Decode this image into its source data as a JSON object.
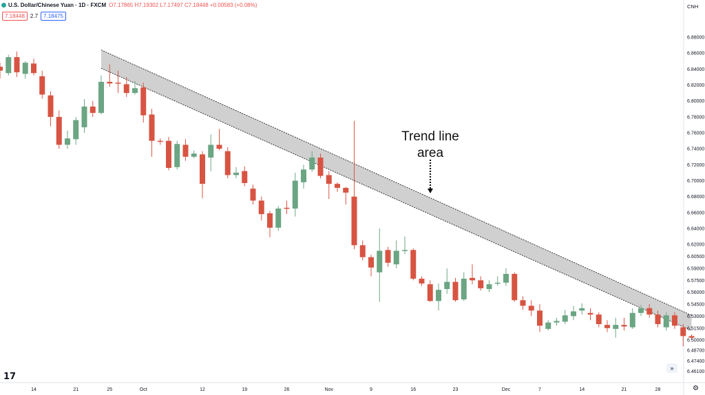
{
  "header": {
    "symbol": "U.S. Dollar/Chinese Yuan · 1D · FXCM",
    "ohlc": "O7.17865 H7.19302 L7.17497 C7.18448 +0.00583 (+0.08%)",
    "sell_price": "7.18448",
    "spread": "2.7",
    "buy_price": "7.18475",
    "currency": "CNH"
  },
  "icons": {
    "logo": "tradingview-logo-icon",
    "forward": "double-chevron-right-icon",
    "settings": "gear-icon"
  },
  "logo_text": "17",
  "forward_glyph": "»",
  "settings_glyph": "⚙",
  "colors": {
    "up": "#6ba583",
    "down": "#d75442",
    "band": "#c8c8c8",
    "axis_text": "#131722"
  },
  "chart_data": {
    "type": "candlestick",
    "ylim": [
      6.4535,
      6.8982
    ],
    "y_ticks": [
      "6.88000",
      "6.86000",
      "6.84000",
      "6.82000",
      "6.80000",
      "6.78000",
      "6.76000",
      "6.74000",
      "6.72000",
      "6.70000",
      "6.68000",
      "6.66000",
      "6.64000",
      "6.62000",
      "6.60500",
      "6.59000",
      "6.57500",
      "6.56000",
      "6.54500",
      "6.53000",
      "6.51500",
      "6.50000",
      "6.48700",
      "6.47400",
      "6.46100"
    ],
    "x_labels": [
      {
        "label": "14",
        "index": 4
      },
      {
        "label": "21",
        "index": 9
      },
      {
        "label": "25",
        "index": 13
      },
      {
        "label": "Oct",
        "index": 17
      },
      {
        "label": "12",
        "index": 24
      },
      {
        "label": "19",
        "index": 29
      },
      {
        "label": "26",
        "index": 34
      },
      {
        "label": "Nov",
        "index": 39
      },
      {
        "label": "9",
        "index": 44
      },
      {
        "label": "16",
        "index": 49
      },
      {
        "label": "23",
        "index": 54
      },
      {
        "label": "Dec",
        "index": 60
      },
      {
        "label": "7",
        "index": 64
      },
      {
        "label": "14",
        "index": 69
      },
      {
        "label": "21",
        "index": 74
      },
      {
        "label": "28",
        "index": 78
      }
    ],
    "candles": [
      [
        6.843,
        6.838,
        6.848,
        6.828
      ],
      [
        6.835,
        6.855,
        6.858,
        6.832
      ],
      [
        6.855,
        6.836,
        6.862,
        6.83
      ],
      [
        6.834,
        6.848,
        6.85,
        6.828
      ],
      [
        6.847,
        6.835,
        6.853,
        6.832
      ],
      [
        6.831,
        6.808,
        6.838,
        6.803
      ],
      [
        6.807,
        6.78,
        6.812,
        6.768
      ],
      [
        6.78,
        6.745,
        6.788,
        6.74
      ],
      [
        6.745,
        6.753,
        6.763,
        6.74
      ],
      [
        6.752,
        6.776,
        6.78,
        6.745
      ],
      [
        6.767,
        6.793,
        6.802,
        6.76
      ],
      [
        6.793,
        6.785,
        6.8,
        6.78
      ],
      [
        6.785,
        6.824,
        6.832,
        6.783
      ],
      [
        6.824,
        6.822,
        6.846,
        6.818
      ],
      [
        6.823,
        6.822,
        6.838,
        6.81
      ],
      [
        6.821,
        6.81,
        6.83,
        6.805
      ],
      [
        6.81,
        6.816,
        6.825,
        6.808
      ],
      [
        6.817,
        6.782,
        6.823,
        6.773
      ],
      [
        6.783,
        6.75,
        6.79,
        6.73
      ],
      [
        6.75,
        6.749,
        6.753,
        6.745
      ],
      [
        6.75,
        6.716,
        6.755,
        6.713
      ],
      [
        6.717,
        6.746,
        6.75,
        6.714
      ],
      [
        6.745,
        6.73,
        6.752,
        6.725
      ],
      [
        6.73,
        6.734,
        6.738,
        6.728
      ],
      [
        6.733,
        6.696,
        6.737,
        6.678
      ],
      [
        6.729,
        6.745,
        6.758,
        6.712
      ],
      [
        6.745,
        6.74,
        6.765,
        6.738
      ],
      [
        6.737,
        6.707,
        6.742,
        6.703
      ],
      [
        6.707,
        6.71,
        6.717,
        6.703
      ],
      [
        6.712,
        6.697,
        6.718,
        6.693
      ],
      [
        6.69,
        6.675,
        6.695,
        6.67
      ],
      [
        6.675,
        6.658,
        6.68,
        6.65
      ],
      [
        6.659,
        6.641,
        6.662,
        6.629
      ],
      [
        6.641,
        6.665,
        6.668,
        6.637
      ],
      [
        6.666,
        6.665,
        6.675,
        6.658
      ],
      [
        6.665,
        6.7,
        6.71,
        6.655
      ],
      [
        6.698,
        6.714,
        6.72,
        6.69
      ],
      [
        6.714,
        6.729,
        6.737,
        6.711
      ],
      [
        6.729,
        6.706,
        6.734,
        6.703
      ],
      [
        6.707,
        6.696,
        6.712,
        6.677
      ],
      [
        6.696,
        6.691,
        6.698,
        6.686
      ],
      [
        6.691,
        6.685,
        6.692,
        6.67
      ],
      [
        6.68,
        6.619,
        6.775,
        6.614
      ],
      [
        6.619,
        6.604,
        6.625,
        6.6
      ],
      [
        6.604,
        6.591,
        6.607,
        6.58
      ],
      [
        6.585,
        6.612,
        6.64,
        6.548
      ],
      [
        6.613,
        6.597,
        6.617,
        6.592
      ],
      [
        6.595,
        6.612,
        6.625,
        6.59
      ],
      [
        6.613,
        6.613,
        6.63,
        6.608
      ],
      [
        6.613,
        6.577,
        6.615,
        6.575
      ],
      [
        6.577,
        6.571,
        6.58,
        6.568
      ],
      [
        6.57,
        6.549,
        6.575,
        6.548
      ],
      [
        6.549,
        6.563,
        6.571,
        6.537
      ],
      [
        6.564,
        6.573,
        6.59,
        6.558
      ],
      [
        6.573,
        6.55,
        6.578,
        6.548
      ],
      [
        6.551,
        6.577,
        6.585,
        6.549
      ],
      [
        6.578,
        6.575,
        6.595,
        6.57
      ],
      [
        6.575,
        6.565,
        6.58,
        6.562
      ],
      [
        6.564,
        6.57,
        6.575,
        6.56
      ],
      [
        6.571,
        6.572,
        6.58,
        6.568
      ],
      [
        6.572,
        6.583,
        6.59,
        6.568
      ],
      [
        6.583,
        6.55,
        6.585,
        6.548
      ],
      [
        6.55,
        6.543,
        6.555,
        6.538
      ],
      [
        6.543,
        6.537,
        6.55,
        6.53
      ],
      [
        6.537,
        6.518,
        6.545,
        6.51
      ],
      [
        6.514,
        6.522,
        6.525,
        6.512
      ],
      [
        6.522,
        6.524,
        6.528,
        6.518
      ],
      [
        6.523,
        6.531,
        6.538,
        6.52
      ],
      [
        6.53,
        6.536,
        6.543,
        6.525
      ],
      [
        6.537,
        6.54,
        6.546,
        6.532
      ],
      [
        6.534,
        6.532,
        6.54,
        6.525
      ],
      [
        6.532,
        6.52,
        6.535,
        6.516
      ],
      [
        6.519,
        6.515,
        6.525,
        6.51
      ],
      [
        6.514,
        6.519,
        6.528,
        6.503
      ],
      [
        6.519,
        6.517,
        6.528,
        6.512
      ],
      [
        6.516,
        6.534,
        6.54,
        6.514
      ],
      [
        6.534,
        6.54,
        6.544,
        6.53
      ],
      [
        6.54,
        6.532,
        6.545,
        6.528
      ],
      [
        6.532,
        6.52,
        6.537,
        6.516
      ],
      [
        6.516,
        6.531,
        6.535,
        6.512
      ],
      [
        6.531,
        6.518,
        6.535,
        6.514
      ],
      [
        6.516,
        6.505,
        6.52,
        6.492
      ],
      [
        6.505,
        6.503,
        6.507,
        6.5
      ]
    ],
    "trend_band": {
      "start_index": 12,
      "end_index": 82,
      "upper": [
        6.864,
        6.531
      ],
      "lower": [
        6.841,
        6.512
      ]
    },
    "annotation": {
      "lines": [
        "Trend line",
        "area"
      ],
      "anchor_index": 52,
      "arrow_to_value": 6.684
    }
  }
}
